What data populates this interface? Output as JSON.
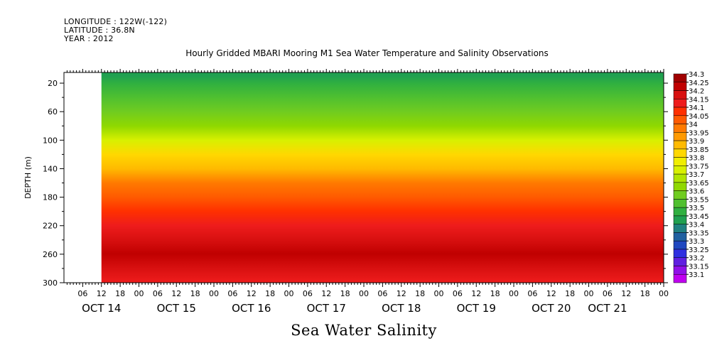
{
  "header": {
    "longitude": "LONGITUDE : 122W(-122)",
    "latitude": "LATITUDE : 36.8N",
    "year": "YEAR : 2012"
  },
  "chart_data": {
    "type": "heatmap",
    "title": "Hourly Gridded MBARI Mooring M1 Sea Water Temperature and Salinity Observations",
    "xlabel": "Sea Water Salinity",
    "ylabel": "DEPTH (m)",
    "x_hour_ticks": [
      "06",
      "12",
      "18",
      "00",
      "06",
      "12",
      "18",
      "00",
      "06",
      "12",
      "18",
      "00",
      "06",
      "12",
      "18",
      "00",
      "06",
      "12",
      "18",
      "00",
      "06",
      "12",
      "18",
      "00",
      "06",
      "12",
      "18",
      "00",
      "06",
      "12",
      "18",
      "00"
    ],
    "x_day_labels": [
      "OCT 14",
      "OCT 15",
      "OCT 16",
      "OCT 17",
      "OCT 18",
      "OCT 19",
      "OCT 20",
      "OCT 21"
    ],
    "xlim_hours_from_oct14_00": [
      0,
      192
    ],
    "data_start_hour": 12,
    "ylim": [
      300,
      5
    ],
    "y_ticks": [
      20,
      60,
      100,
      140,
      180,
      220,
      260,
      300
    ],
    "y_minor_ticks": [
      40,
      80,
      120,
      160,
      200,
      240,
      280
    ],
    "depth_profile": [
      {
        "depth": 10,
        "salinity": 33.42
      },
      {
        "depth": 20,
        "salinity": 33.47
      },
      {
        "depth": 40,
        "salinity": 33.52
      },
      {
        "depth": 60,
        "salinity": 33.57
      },
      {
        "depth": 80,
        "salinity": 33.62
      },
      {
        "depth": 100,
        "salinity": 33.7
      },
      {
        "depth": 120,
        "salinity": 33.8
      },
      {
        "depth": 140,
        "salinity": 33.87
      },
      {
        "depth": 160,
        "salinity": 33.95
      },
      {
        "depth": 180,
        "salinity": 34.02
      },
      {
        "depth": 200,
        "salinity": 34.07
      },
      {
        "depth": 220,
        "salinity": 34.13
      },
      {
        "depth": 240,
        "salinity": 34.17
      },
      {
        "depth": 260,
        "salinity": 34.2
      },
      {
        "depth": 280,
        "salinity": 34.17
      },
      {
        "depth": 300,
        "salinity": 34.14
      }
    ],
    "legend": {
      "labels": [
        "34.3",
        "34.25",
        "34.2",
        "34.15",
        "34.1",
        "34.05",
        "34",
        "33.95",
        "33.9",
        "33.85",
        "33.8",
        "33.75",
        "33.7",
        "33.65",
        "33.6",
        "33.55",
        "33.5",
        "33.45",
        "33.4",
        "33.35",
        "33.3",
        "33.25",
        "33.2",
        "33.15",
        "33.1"
      ],
      "colors": [
        "#a00000",
        "#c00000",
        "#d81010",
        "#ee1c1c",
        "#ff3000",
        "#ff5a00",
        "#ff7a00",
        "#ff9a00",
        "#ffba00",
        "#ffd800",
        "#f0ee00",
        "#d8f000",
        "#b0e400",
        "#90d800",
        "#70cc20",
        "#50c030",
        "#30b040",
        "#20a050",
        "#208080",
        "#2060a0",
        "#2048c0",
        "#3030e0",
        "#6020e0",
        "#9010e8",
        "#c000f0"
      ]
    }
  }
}
